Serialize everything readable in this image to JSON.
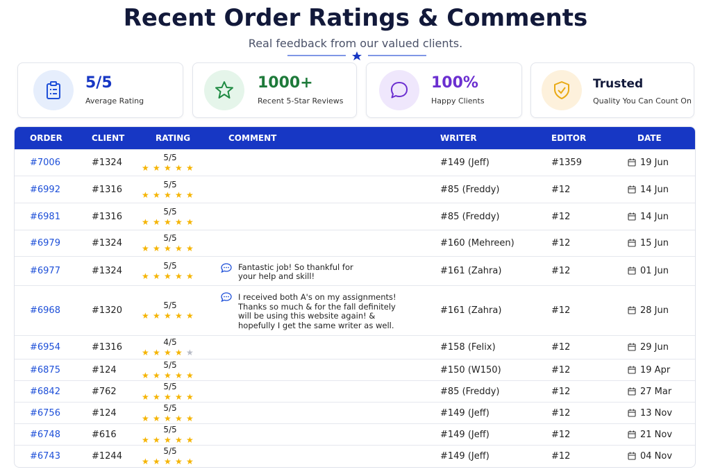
{
  "header": {
    "title": "Recent Order Ratings & Comments",
    "subtitle": "Real feedback from our valued clients."
  },
  "cards": [
    {
      "value": "5/5",
      "label": "Average Rating"
    },
    {
      "value": "1000+",
      "label": "Recent 5-Star Reviews"
    },
    {
      "value": "100%",
      "label": "Happy Clients"
    },
    {
      "value": "Trusted",
      "label": "Quality You Can Count On"
    }
  ],
  "table": {
    "columns": [
      "ORDER",
      "CLIENT",
      "RATING",
      "COMMENT",
      "WRITER",
      "EDITOR",
      "DATE"
    ],
    "rows": [
      {
        "order": "#7006",
        "client": "#1324",
        "rating": "5/5",
        "writer": "#149 (Jeff)",
        "editor": "#1359",
        "date": "19 Jun"
      },
      {
        "order": "#6992",
        "client": "#1316",
        "rating": "5/5",
        "writer": "#85 (Freddy)",
        "editor": "#12",
        "date": "14 Jun"
      },
      {
        "order": "#6981",
        "client": "#1316",
        "rating": "5/5",
        "writer": "#85 (Freddy)",
        "editor": "#12",
        "date": "14 Jun"
      },
      {
        "order": "#6979",
        "client": "#1324",
        "rating": "5/5",
        "writer": "#160 (Mehreen)",
        "editor": "#12",
        "date": "15 Jun"
      },
      {
        "order": "#6977",
        "client": "#1324",
        "rating": "5/5",
        "comment": [
          "Fantastic job! So thankful for",
          "your help and skill!"
        ],
        "writer": "#161 (Zahra)",
        "editor": "#12",
        "date": "01 Jun"
      },
      {
        "order": "#6968",
        "client": "#1320",
        "rating": "5/5",
        "comment": [
          "I received both A's on my assignments!",
          "Thanks so much & for the fall definitely",
          "will be using this website again! &",
          "hopefully I get the same writer as well."
        ],
        "writer": "#161 (Zahra)",
        "editor": "#12",
        "date": "28 Jun"
      },
      {
        "order": "#6954",
        "client": "#1316",
        "rating": "4/5",
        "writer": "#158 (Felix)",
        "editor": "#12",
        "date": "29 Jun"
      },
      {
        "order": "#6875",
        "client": "#124",
        "rating": "5/5",
        "writer": "#150 (W150)",
        "editor": "#12",
        "date": "19 Apr"
      },
      {
        "order": "#6842",
        "client": "#762",
        "rating": "5/5",
        "writer": "#85 (Freddy)",
        "editor": "#12",
        "date": "27 Mar"
      },
      {
        "order": "#6756",
        "client": "#124",
        "rating": "5/5",
        "writer": "#149 (Jeff)",
        "editor": "#12",
        "date": "13 Nov"
      },
      {
        "order": "#6748",
        "client": "#616",
        "rating": "5/5",
        "writer": "#149 (Jeff)",
        "editor": "#12",
        "date": "21 Nov"
      },
      {
        "order": "#6743",
        "client": "#1244",
        "rating": "5/5",
        "writer": "#149 (Jeff)",
        "editor": "#12",
        "date": "04 Nov"
      }
    ]
  }
}
